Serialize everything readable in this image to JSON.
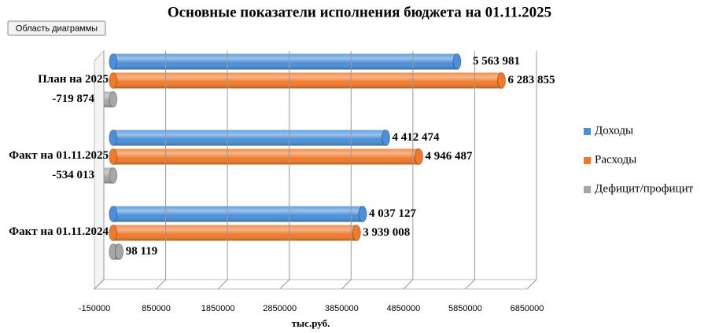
{
  "tooltip": "Область диаграммы",
  "chart_data": {
    "type": "bar",
    "orientation": "horizontal",
    "title": "Основные показатели исполнения бюджета на 01.11.2025",
    "x_label": "тыс.руб.",
    "categories": [
      "План на 2025",
      "Факт на 01.11.2025",
      "Факт на 01.11.2024"
    ],
    "series": [
      {
        "name": "Доходы",
        "color": "#4a8fd8",
        "values": [
          5563981,
          4412474,
          4037127
        ],
        "value_labels": [
          "5 563 981",
          "4 412 474",
          "4 037 127"
        ]
      },
      {
        "name": "Расходы",
        "color": "#f07a2a",
        "values": [
          6283855,
          4946487,
          3939008
        ],
        "value_labels": [
          "6 283 855",
          "4 946 487",
          "3 939 008"
        ]
      },
      {
        "name": "Дефицит/профицит",
        "color": "#a6a6a6",
        "values": [
          -719874,
          -534013,
          98119
        ],
        "value_labels": [
          "-719 874",
          "-534 013",
          "98 119"
        ]
      }
    ],
    "xlim": [
      -150000,
      6850000
    ],
    "xticks": [
      -150000,
      850000,
      1850000,
      2850000,
      3850000,
      4850000,
      5850000,
      6850000
    ],
    "grid": true,
    "legend": "right"
  }
}
